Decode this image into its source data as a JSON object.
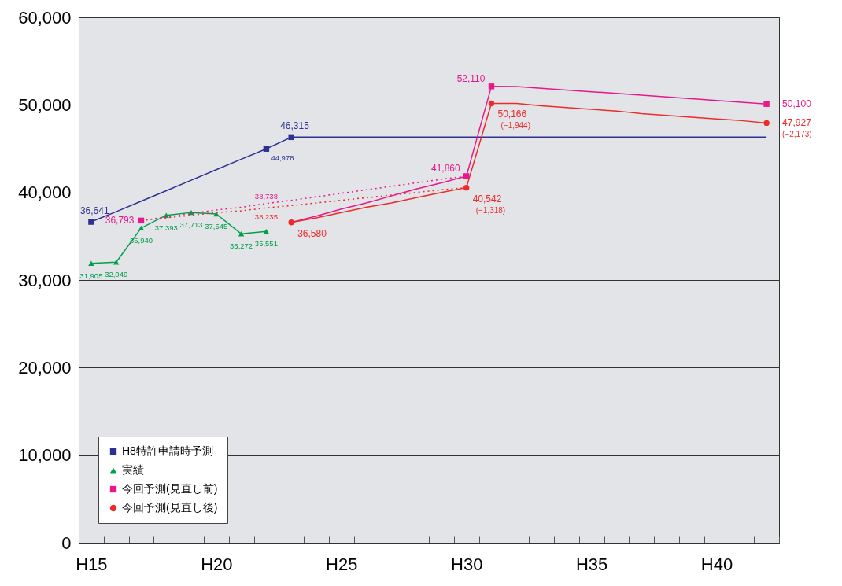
{
  "chart_data": {
    "type": "line",
    "categories": [
      "H15",
      null,
      null,
      null,
      null,
      "H20",
      null,
      null,
      null,
      null,
      "H25",
      null,
      null,
      null,
      null,
      "H30",
      null,
      null,
      null,
      null,
      "H35",
      null,
      null,
      null,
      null,
      "H40",
      null,
      null
    ],
    "ylim": [
      0,
      60000
    ],
    "yticks": [
      0,
      {
        "value": 10000,
        "label": "10,000"
      },
      {
        "value": 20000,
        "label": "20,000"
      },
      {
        "value": 30000,
        "label": "30,000"
      },
      {
        "value": 40000,
        "label": "40,000"
      },
      {
        "value": 50000,
        "label": "50,000"
      },
      {
        "value": 60000,
        "label": "60,000"
      }
    ],
    "grid": "y",
    "legend": "bottom left",
    "series": [
      {
        "color": "#2e3192",
        "marker": "none",
        "values": [
          36641,
          37800,
          39000,
          40200,
          41400,
          42600,
          43800,
          44978,
          46315,
          46315,
          46315,
          46315,
          46315,
          46315,
          46315,
          46315,
          46315,
          46315,
          46315,
          46315,
          46315,
          46315,
          46315,
          46315,
          46315,
          46315,
          46315,
          46315
        ]
      },
      {
        "name": "H8特許申請時予測",
        "type": "scatter",
        "color": "#2e3192",
        "marker": "square",
        "values": [
          36641,
          null,
          null,
          null,
          null,
          null,
          null,
          44978,
          46315,
          null,
          null,
          null,
          null,
          null,
          null,
          null,
          null,
          null,
          null,
          null,
          null,
          null,
          null,
          null,
          null,
          null,
          null,
          null
        ],
        "value_labels": [
          "36,641",
          null,
          null,
          null,
          null,
          null,
          null,
          "44,978",
          "46,315",
          null,
          null,
          null,
          null,
          null,
          null,
          null,
          null,
          null,
          null,
          null,
          null,
          null,
          null,
          null,
          null,
          null,
          null,
          null
        ]
      },
      {
        "name": "実績",
        "color": "#00a04a",
        "marker": "triangle",
        "values": [
          31905,
          32049,
          35940,
          37393,
          37713,
          37545,
          35272,
          35551,
          null,
          null,
          null,
          null,
          null,
          null,
          null,
          null,
          null,
          null,
          null,
          null,
          null,
          null,
          null,
          null,
          null,
          null,
          null,
          null
        ],
        "value_labels": [
          "31,905",
          "32,049",
          "35,940",
          "37,393",
          "37,713",
          "37,545",
          "35,272",
          "35,551",
          null,
          null,
          null,
          null,
          null,
          null,
          null,
          null,
          null,
          null,
          null,
          null,
          null,
          null,
          null,
          null,
          null,
          null,
          null,
          null
        ]
      },
      {
        "color": "#e8188c",
        "marker": "none",
        "line_style": "dotted",
        "values": [
          null,
          null,
          36793,
          37200,
          37600,
          38000,
          38300,
          38738,
          39100,
          39500,
          39900,
          40300,
          40700,
          41100,
          41500,
          41860,
          null,
          null,
          null,
          null,
          null,
          null,
          null,
          null,
          null,
          null,
          null,
          null
        ],
        "value_labels": [
          null,
          null,
          null,
          null,
          null,
          null,
          null,
          "38,738",
          null,
          null,
          null,
          null,
          null,
          null,
          null,
          null,
          null,
          null,
          null,
          null,
          null,
          null,
          null,
          null,
          null,
          null,
          null,
          null
        ]
      },
      {
        "color": "#ee2a2a",
        "marker": "none",
        "line_style": "dotted",
        "values": [
          null,
          null,
          36793,
          37100,
          37400,
          37700,
          37900,
          38235,
          38500,
          38800,
          39100,
          39400,
          39700,
          40000,
          40300,
          40542,
          null,
          null,
          null,
          null,
          null,
          null,
          null,
          null,
          null,
          null,
          null,
          null
        ],
        "value_labels": [
          null,
          null,
          null,
          null,
          null,
          null,
          null,
          "38,235",
          null,
          null,
          null,
          null,
          null,
          null,
          null,
          null,
          null,
          null,
          null,
          null,
          null,
          null,
          null,
          null,
          null,
          null,
          null,
          null
        ]
      },
      {
        "color": "#e8188c",
        "marker": "none",
        "values": [
          null,
          null,
          null,
          null,
          null,
          null,
          null,
          null,
          36580,
          37300,
          38100,
          38800,
          39600,
          40400,
          41100,
          41860,
          52110,
          52100,
          51900,
          51700,
          51500,
          51300,
          51100,
          50900,
          50700,
          50500,
          50300,
          50100
        ]
      },
      {
        "color": "#ee2a2a",
        "marker": "none",
        "values": [
          null,
          null,
          null,
          null,
          null,
          null,
          null,
          null,
          36580,
          37100,
          37700,
          38300,
          38800,
          39400,
          40000,
          40542,
          50166,
          50166,
          49900,
          49700,
          49500,
          49300,
          49000,
          48800,
          48600,
          48400,
          48200,
          47927
        ]
      },
      {
        "name": "今回予測(見直し前)",
        "type": "scatter",
        "color": "#e8188c",
        "marker": "square",
        "values": [
          null,
          null,
          36793,
          null,
          null,
          null,
          null,
          null,
          null,
          null,
          null,
          null,
          null,
          null,
          null,
          41860,
          52110,
          null,
          null,
          null,
          null,
          null,
          null,
          null,
          null,
          null,
          null,
          50100
        ],
        "value_labels": [
          null,
          null,
          "36,793",
          null,
          null,
          null,
          null,
          null,
          null,
          null,
          null,
          null,
          null,
          null,
          null,
          "41,860",
          "52,110",
          null,
          null,
          null,
          null,
          null,
          null,
          null,
          null,
          null,
          null,
          "50,100"
        ]
      },
      {
        "name": "今回予測(見直し後)",
        "type": "scatter",
        "color": "#ee2a2a",
        "marker": "circle",
        "values": [
          null,
          null,
          null,
          null,
          null,
          null,
          null,
          null,
          36580,
          null,
          null,
          null,
          null,
          null,
          null,
          40542,
          50166,
          null,
          null,
          null,
          null,
          null,
          null,
          null,
          null,
          null,
          null,
          47927
        ],
        "value_labels": [
          null,
          null,
          null,
          null,
          null,
          null,
          null,
          null,
          "36,580",
          null,
          null,
          null,
          null,
          null,
          null,
          "40,542",
          "50,166",
          null,
          null,
          null,
          null,
          null,
          null,
          null,
          null,
          null,
          null,
          "47,927"
        ]
      }
    ],
    "annotations": [
      "(−1,318)",
      "(−1,944)",
      "(−2,173)"
    ]
  }
}
